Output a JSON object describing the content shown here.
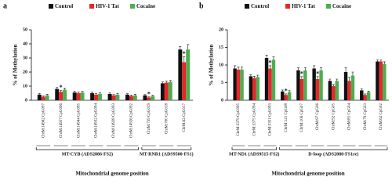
{
  "chart_data": [
    {
      "type": "bar",
      "panel": "a",
      "ylabel": "% of Methylation",
      "xlabel": "Mitochondrial genome position",
      "ylim": [
        0,
        50
      ],
      "yticks": [
        0,
        10,
        20,
        30,
        40,
        50
      ],
      "groups": [
        {
          "label": "MT-CYB (ADS2886-FS2)",
          "categories": [
            "ChrM:14962 CpG097",
            "ChrM:14957 CpG096",
            "ChrM:14944 CpG095",
            "ChrM:14932 CpG094",
            "ChrM:14928 CpG093",
            "ChrM:14926 CpG092"
          ]
        },
        {
          "label": "MT-RNR1 (ADS9500-FS1)",
          "categories": [
            "ChrM:739 CpG019",
            "ChrM:700 CpG018",
            "ChrM:62 CpG017"
          ]
        }
      ],
      "series": [
        {
          "name": "Control",
          "color": "#111111",
          "values": [
            4,
            8,
            5.5,
            5,
            4.5,
            4,
            3.5,
            12,
            36
          ],
          "errors": [
            0.8,
            1,
            0.8,
            0.8,
            0.7,
            0.7,
            0.6,
            1,
            2
          ]
        },
        {
          "name": "HIV-1 Tat",
          "color": "#e8262a",
          "values": [
            2.5,
            6,
            5,
            4,
            3.5,
            3,
            2,
            12.5,
            27
          ],
          "errors": [
            0.6,
            1,
            0.8,
            0.7,
            0.6,
            0.6,
            0.5,
            1,
            4
          ]
        },
        {
          "name": "Cocaine",
          "color": "#4cae50",
          "values": [
            3.5,
            7.5,
            5.5,
            4.5,
            4,
            3.5,
            3,
            13,
            36
          ],
          "errors": [
            0.7,
            1,
            0.8,
            0.8,
            0.7,
            0.7,
            0.6,
            1,
            3.5
          ]
        }
      ],
      "annotations": [
        {
          "label": "*",
          "at": "series.1.values.1"
        },
        {
          "label": "*",
          "at": "series.1.values.6"
        },
        {
          "label": "*",
          "at": "series.1.values.8"
        }
      ]
    },
    {
      "type": "bar",
      "panel": "b",
      "ylabel": "% of Methylation",
      "xlabel": "Mitochondrial genome position",
      "ylim": [
        0,
        20
      ],
      "yticks": [
        0,
        5,
        10,
        15,
        20
      ],
      "groups": [
        {
          "label": "MT-ND1 (ADS9515-FS2)",
          "categories": [
            "ChrM:3379 CpG095",
            "ChrM:3375 CpG094",
            "ChrM:3351 CpG093"
          ]
        },
        {
          "label": "D-loop (ADS2888-FS1re)",
          "categories": [
            "ChrM:121 CpG08",
            "ChrM:106 CpG07",
            "ChrM:97 CpG06",
            "ChrM:92 CpG05",
            "ChrM:81 CpG04",
            "ChrM:79 CpG03",
            "ChrM:62 CpG02"
          ]
        }
      ],
      "series": [
        {
          "name": "Control",
          "color": "#111111",
          "values": [
            9,
            6.8,
            12,
            2.5,
            8.5,
            9,
            5.5,
            8,
            2.8,
            11
          ],
          "errors": [
            0.8,
            0.5,
            0.8,
            0.4,
            0.7,
            0.8,
            0.5,
            1.2,
            0.4,
            0.5
          ]
        },
        {
          "name": "HIV-1 Tat",
          "color": "#e8262a",
          "values": [
            8.7,
            6.3,
            9,
            1.5,
            6,
            6,
            4,
            5.5,
            1.5,
            11
          ],
          "errors": [
            0.7,
            0.5,
            0.8,
            0.3,
            0.7,
            0.7,
            0.5,
            1,
            0.3,
            0.5
          ]
        },
        {
          "name": "Cocaine",
          "color": "#4cae50",
          "values": [
            8.7,
            6.6,
            11.5,
            2.3,
            8.5,
            8.5,
            5.5,
            7,
            2.3,
            10.3
          ],
          "errors": [
            0.7,
            0.5,
            0.8,
            0.4,
            0.7,
            0.8,
            0.5,
            1,
            0.3,
            0.6
          ]
        }
      ],
      "annotations": [
        {
          "label": "*",
          "at": "series.1.values.2"
        },
        {
          "label": "*",
          "at": "series.1.values.3"
        },
        {
          "label": "*",
          "at": "series.1.values.4"
        },
        {
          "label": "*",
          "at": "series.1.values.5"
        }
      ]
    }
  ]
}
